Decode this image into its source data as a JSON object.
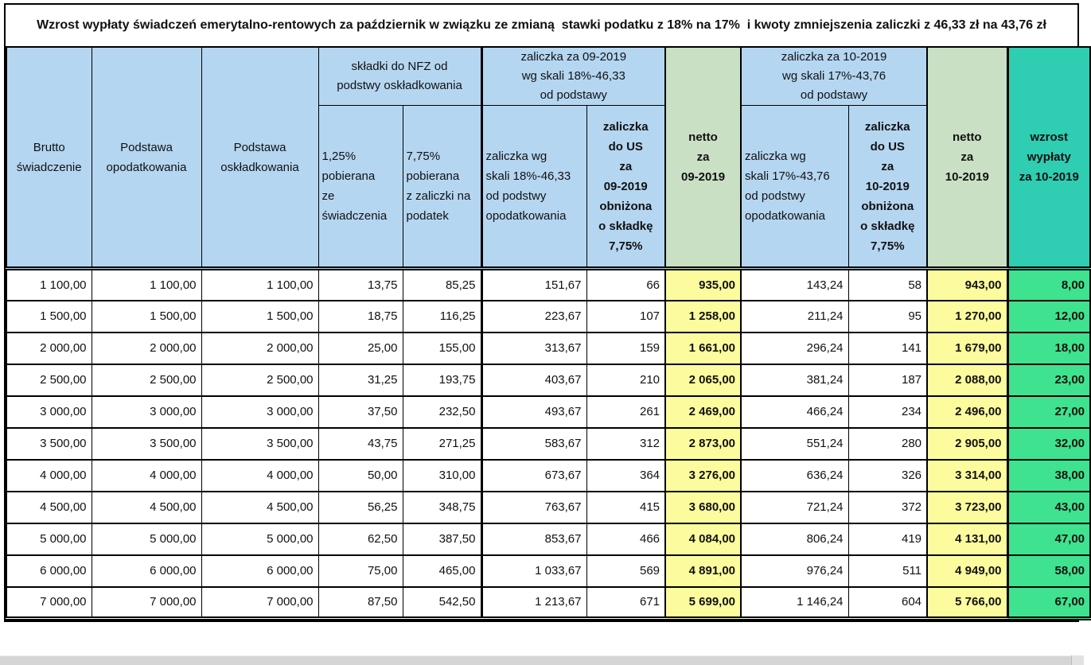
{
  "title": "Wzrost wypłaty świadczeń emerytalno-rentowych za październik w związku ze zmianą  stawki podatku z 18% na 17%  i kwoty zmniejszenia zaliczki z 46,33 zł na 43,76 zł",
  "colors": {
    "header_blue": "#B5D6F1",
    "header_green": "#C9E0C4",
    "header_teal": "#2FCDB2",
    "cell_yellow": "#FCFC9E",
    "cell_green": "#3FE28E"
  },
  "table": {
    "headers": {
      "brutto": "Brutto\nświadczenie",
      "podstawa_opodatkowania": "Podstawa\nopodatkowania",
      "podstawa_oskladkowania": "Podstawa\noskładkowania",
      "group_nfz": "składki do NFZ od\npodstwy oskładkowania",
      "nfz_125": "1,25%\npobierana\nze\nświadczenia",
      "nfz_775": "7,75%\npobierana\nz zaliczki na\npodatek",
      "group_zaliczka_09": "zaliczka za 09-2019\nwg skali 18%-46,33\nod podstawy",
      "zaliczka_skala_09": "zaliczka wg\nskali 18%-46,33\nod podstwy\nopodatkowania",
      "zaliczka_us_09": "zaliczka\ndo US\nza\n09-2019\nobniżona\no składkę\n7,75%",
      "netto_09": "netto\nza\n09-2019",
      "group_zaliczka_10": "zaliczka za 10-2019\nwg skali 17%-43,76\nod podstawy",
      "zaliczka_skala_10": "zaliczka wg\nskali 17%-43,76\nod podstwy\nopodatkowania",
      "zaliczka_us_10": "zaliczka\ndo US\nza\n10-2019\nobniżona\no składkę\n7,75%",
      "netto_10": "netto\nza\n10-2019",
      "wzrost": "wzrost\nwypłaty\nza 10-2019"
    },
    "rows": [
      [
        "1 100,00",
        "1 100,00",
        "1 100,00",
        "13,75",
        "85,25",
        "151,67",
        "66",
        "935,00",
        "143,24",
        "58",
        "943,00",
        "8,00"
      ],
      [
        "1 500,00",
        "1 500,00",
        "1 500,00",
        "18,75",
        "116,25",
        "223,67",
        "107",
        "1 258,00",
        "211,24",
        "95",
        "1 270,00",
        "12,00"
      ],
      [
        "2 000,00",
        "2 000,00",
        "2 000,00",
        "25,00",
        "155,00",
        "313,67",
        "159",
        "1 661,00",
        "296,24",
        "141",
        "1 679,00",
        "18,00"
      ],
      [
        "2 500,00",
        "2 500,00",
        "2 500,00",
        "31,25",
        "193,75",
        "403,67",
        "210",
        "2 065,00",
        "381,24",
        "187",
        "2 088,00",
        "23,00"
      ],
      [
        "3 000,00",
        "3 000,00",
        "3 000,00",
        "37,50",
        "232,50",
        "493,67",
        "261",
        "2 469,00",
        "466,24",
        "234",
        "2 496,00",
        "27,00"
      ],
      [
        "3 500,00",
        "3 500,00",
        "3 500,00",
        "43,75",
        "271,25",
        "583,67",
        "312",
        "2 873,00",
        "551,24",
        "280",
        "2 905,00",
        "32,00"
      ],
      [
        "4 000,00",
        "4 000,00",
        "4 000,00",
        "50,00",
        "310,00",
        "673,67",
        "364",
        "3 276,00",
        "636,24",
        "326",
        "3 314,00",
        "38,00"
      ],
      [
        "4 500,00",
        "4 500,00",
        "4 500,00",
        "56,25",
        "348,75",
        "763,67",
        "415",
        "3 680,00",
        "721,24",
        "372",
        "3 723,00",
        "43,00"
      ],
      [
        "5 000,00",
        "5 000,00",
        "5 000,00",
        "62,50",
        "387,50",
        "853,67",
        "466",
        "4 084,00",
        "806,24",
        "419",
        "4 131,00",
        "47,00"
      ],
      [
        "6 000,00",
        "6 000,00",
        "6 000,00",
        "75,00",
        "465,00",
        "1 033,67",
        "569",
        "4 891,00",
        "976,24",
        "511",
        "4 949,00",
        "58,00"
      ],
      [
        "7 000,00",
        "7 000,00",
        "7 000,00",
        "87,50",
        "542,50",
        "1 213,67",
        "671",
        "5 699,00",
        "1 146,24",
        "604",
        "5 766,00",
        "67,00"
      ]
    ]
  }
}
